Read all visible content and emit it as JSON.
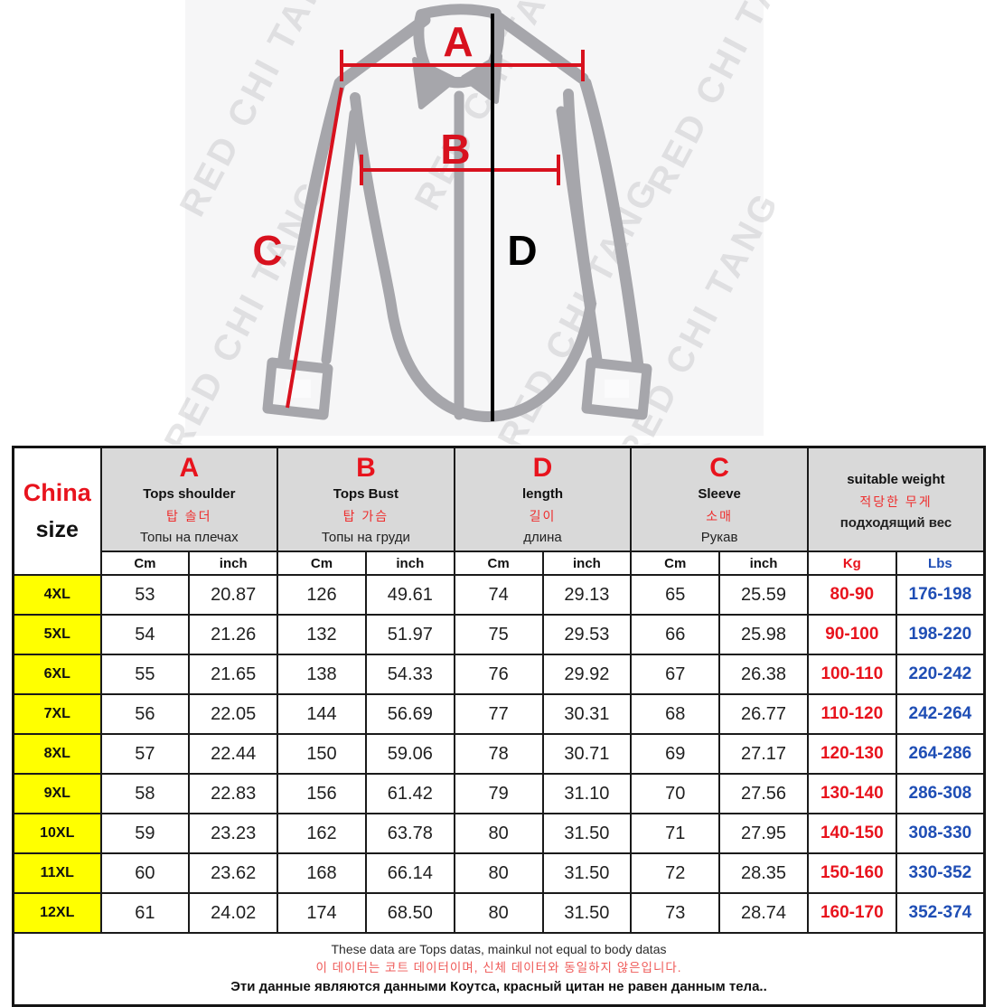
{
  "diagram": {
    "watermark": "RED CHI TANG",
    "measure_labels": {
      "a": "A",
      "b": "B",
      "c": "C",
      "d": "D"
    }
  },
  "table": {
    "corner": {
      "line1": "China",
      "line2": "size"
    },
    "columns": [
      {
        "letter": "A",
        "en": "Tops shoulder",
        "kr": "탑 솔더",
        "ru": "Топы на плечах",
        "units": [
          "Cm",
          "inch"
        ]
      },
      {
        "letter": "B",
        "en": "Tops Bust",
        "kr": "탑 가슴",
        "ru": "Топы на груди",
        "units": [
          "Cm",
          "inch"
        ]
      },
      {
        "letter": "D",
        "en": "length",
        "kr": "길이",
        "ru": "длина",
        "units": [
          "Cm",
          "inch"
        ]
      },
      {
        "letter": "C",
        "en": "Sleeve",
        "kr": "소매",
        "ru": "Рукав",
        "units": [
          "Cm",
          "inch"
        ]
      },
      {
        "letter": "",
        "en": "suitable weight",
        "kr": "적당한 무게",
        "ru": "подходящий вес",
        "units": [
          "Kg",
          "Lbs"
        ]
      }
    ],
    "rows": [
      {
        "size": "4XL",
        "values": [
          "53",
          "20.87",
          "126",
          "49.61",
          "74",
          "29.13",
          "65",
          "25.59",
          "80-90",
          "176-198"
        ]
      },
      {
        "size": "5XL",
        "values": [
          "54",
          "21.26",
          "132",
          "51.97",
          "75",
          "29.53",
          "66",
          "25.98",
          "90-100",
          "198-220"
        ]
      },
      {
        "size": "6XL",
        "values": [
          "55",
          "21.65",
          "138",
          "54.33",
          "76",
          "29.92",
          "67",
          "26.38",
          "100-110",
          "220-242"
        ]
      },
      {
        "size": "7XL",
        "values": [
          "56",
          "22.05",
          "144",
          "56.69",
          "77",
          "30.31",
          "68",
          "26.77",
          "110-120",
          "242-264"
        ]
      },
      {
        "size": "8XL",
        "values": [
          "57",
          "22.44",
          "150",
          "59.06",
          "78",
          "30.71",
          "69",
          "27.17",
          "120-130",
          "264-286"
        ]
      },
      {
        "size": "9XL",
        "values": [
          "58",
          "22.83",
          "156",
          "61.42",
          "79",
          "31.10",
          "70",
          "27.56",
          "130-140",
          "286-308"
        ]
      },
      {
        "size": "10XL",
        "values": [
          "59",
          "23.23",
          "162",
          "63.78",
          "80",
          "31.50",
          "71",
          "27.95",
          "140-150",
          "308-330"
        ]
      },
      {
        "size": "11XL",
        "values": [
          "60",
          "23.62",
          "168",
          "66.14",
          "80",
          "31.50",
          "72",
          "28.35",
          "150-160",
          "330-352"
        ]
      },
      {
        "size": "12XL",
        "values": [
          "61",
          "24.02",
          "174",
          "68.50",
          "80",
          "31.50",
          "73",
          "28.74",
          "160-170",
          "352-374"
        ]
      }
    ]
  },
  "notes": {
    "en": "These data are Tops datas, mainkul not equal to body datas",
    "kr": "이 데이터는 코트 데이터이며, 신체 데이터와 동일하지 않은입니다.",
    "ru": "Эти данные являются данными Коутса, красный цитан не равен данным тела.."
  },
  "colors": {
    "accent_red": "#e8131d",
    "accent_blue": "#1f4eb5",
    "header_gray": "#d9d9d9",
    "size_yellow": "#ffff00",
    "shirt_gray": "#a6a6ab"
  }
}
